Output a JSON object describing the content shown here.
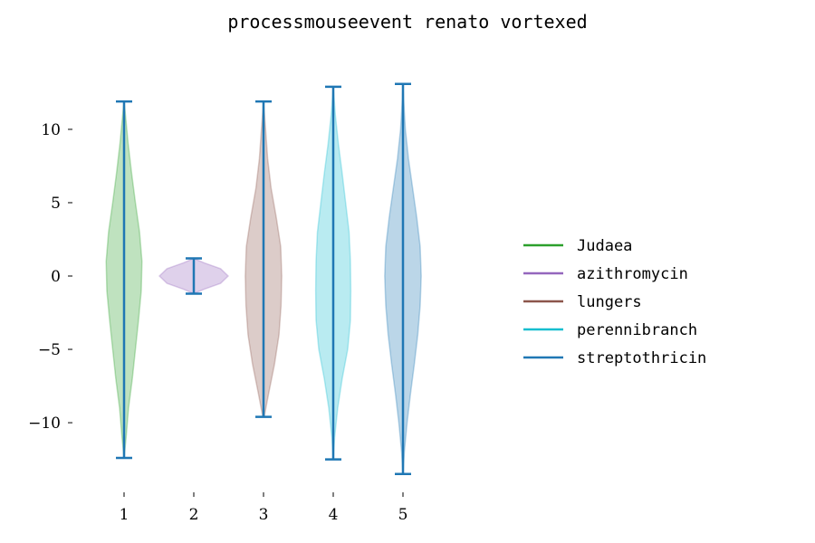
{
  "chart_data": {
    "type": "violin",
    "title": "processmouseevent renato vortexed",
    "xlabel": "",
    "ylabel": "",
    "categories": [
      "1",
      "2",
      "3",
      "4",
      "5"
    ],
    "ylim": [
      -14.5,
      14.5
    ],
    "yticks": [
      10,
      5,
      0,
      -5,
      -10
    ],
    "ytick_labels": [
      "10",
      "5",
      "0",
      "−5",
      "−10"
    ],
    "grid": false,
    "legend_position": "right",
    "line_color": "#1f77b4",
    "series": [
      {
        "name": "Judaea",
        "color": "#2ca02c",
        "min": -12.4,
        "max": 11.9,
        "profile": [
          [
            -12.4,
            0.0
          ],
          [
            -11.0,
            0.06
          ],
          [
            -9.0,
            0.13
          ],
          [
            -7.0,
            0.24
          ],
          [
            -5.0,
            0.33
          ],
          [
            -3.0,
            0.42
          ],
          [
            -1.0,
            0.5
          ],
          [
            1.0,
            0.52
          ],
          [
            3.0,
            0.45
          ],
          [
            5.0,
            0.33
          ],
          [
            7.0,
            0.22
          ],
          [
            9.0,
            0.12
          ],
          [
            11.0,
            0.04
          ],
          [
            11.9,
            0.0
          ]
        ]
      },
      {
        "name": "azithromycin",
        "color": "#9467bd",
        "min": -1.2,
        "max": 1.2,
        "profile": [
          [
            -1.2,
            0.0
          ],
          [
            -0.9,
            0.3
          ],
          [
            -0.5,
            0.78
          ],
          [
            0.0,
            1.0
          ],
          [
            0.5,
            0.78
          ],
          [
            0.9,
            0.3
          ],
          [
            1.2,
            0.0
          ]
        ]
      },
      {
        "name": "lungers",
        "color": "#8c564b",
        "min": -9.6,
        "max": 11.9,
        "profile": [
          [
            -9.6,
            0.02
          ],
          [
            -8.0,
            0.15
          ],
          [
            -6.0,
            0.32
          ],
          [
            -4.0,
            0.45
          ],
          [
            -2.0,
            0.51
          ],
          [
            0.0,
            0.53
          ],
          [
            2.0,
            0.5
          ],
          [
            4.0,
            0.37
          ],
          [
            6.0,
            0.22
          ],
          [
            8.0,
            0.12
          ],
          [
            10.0,
            0.06
          ],
          [
            11.9,
            0.0
          ]
        ]
      },
      {
        "name": "perennibranch",
        "color": "#17becf",
        "min": -12.5,
        "max": 12.9,
        "profile": [
          [
            -12.5,
            0.0
          ],
          [
            -11.0,
            0.04
          ],
          [
            -9.0,
            0.13
          ],
          [
            -7.0,
            0.26
          ],
          [
            -5.0,
            0.42
          ],
          [
            -3.0,
            0.5
          ],
          [
            -1.0,
            0.51
          ],
          [
            1.0,
            0.5
          ],
          [
            3.0,
            0.46
          ],
          [
            5.0,
            0.36
          ],
          [
            7.0,
            0.26
          ],
          [
            9.0,
            0.15
          ],
          [
            11.0,
            0.06
          ],
          [
            12.9,
            0.0
          ]
        ]
      },
      {
        "name": "streptothricin",
        "color": "#1f77b4",
        "min": -13.5,
        "max": 13.1,
        "profile": [
          [
            -13.5,
            0.0
          ],
          [
            -12.0,
            0.04
          ],
          [
            -10.0,
            0.12
          ],
          [
            -8.0,
            0.22
          ],
          [
            -6.0,
            0.33
          ],
          [
            -4.0,
            0.43
          ],
          [
            -2.0,
            0.5
          ],
          [
            0.0,
            0.53
          ],
          [
            2.0,
            0.5
          ],
          [
            4.0,
            0.4
          ],
          [
            6.0,
            0.28
          ],
          [
            8.0,
            0.16
          ],
          [
            10.0,
            0.07
          ],
          [
            12.0,
            0.02
          ],
          [
            13.1,
            0.0
          ]
        ]
      }
    ]
  }
}
